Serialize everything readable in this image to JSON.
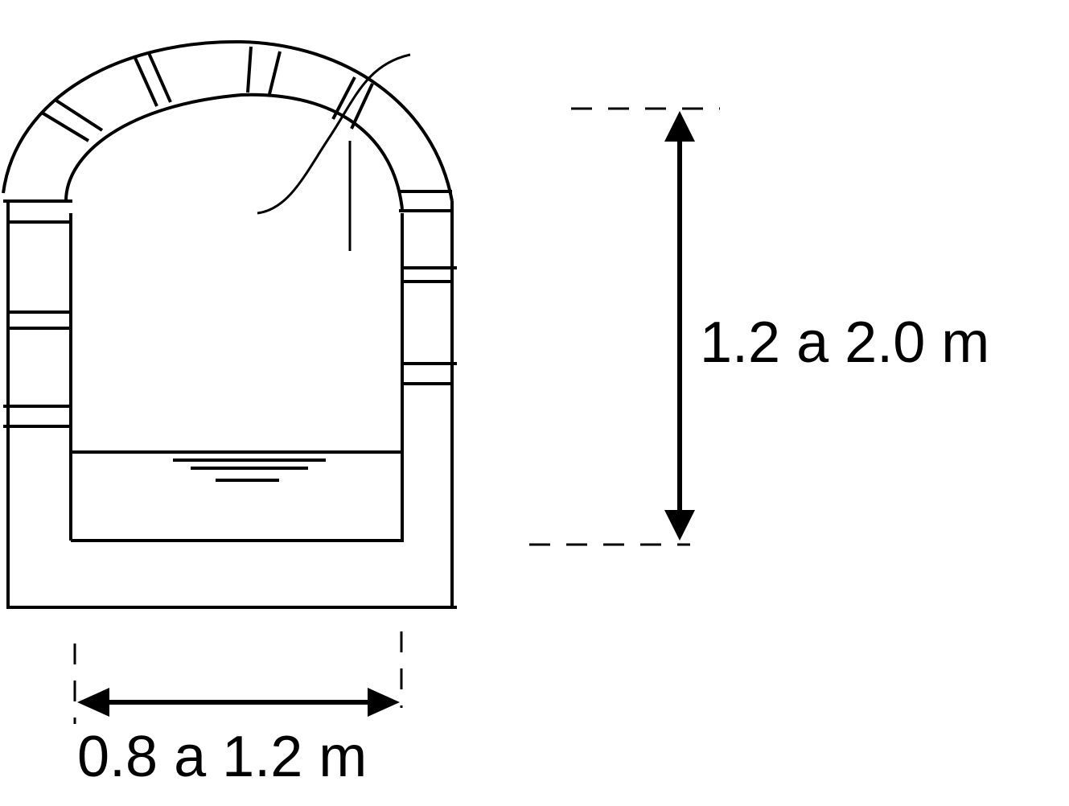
{
  "diagram": {
    "height_label": "1.2 a 2.0 m",
    "width_label": "0.8 a 1.2 m",
    "colors": {
      "stroke": "#000000",
      "background": "#ffffff"
    }
  }
}
